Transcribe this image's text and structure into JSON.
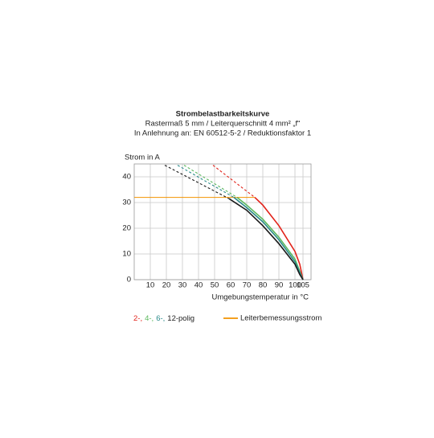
{
  "chart_data": {
    "type": "line",
    "title": "Strombelastbarkeitskurve",
    "subtitle": [
      "Rastermaß 5 mm / Leiterquerschnitt 4 mm² „f“",
      "In Anlehnung an: EN 60512-5-2 / Reduktionsfaktor 1"
    ],
    "y_label": "Strom in A",
    "x_label": "Umgebungstemperatur in °C",
    "xlim": [
      0,
      110
    ],
    "ylim": [
      0,
      45
    ],
    "xticks": [
      10,
      20,
      30,
      40,
      50,
      60,
      70,
      80,
      90,
      100,
      105
    ],
    "yticks": [
      0,
      10,
      20,
      30,
      40
    ],
    "grid": true,
    "series": [
      {
        "name": "2-,",
        "color": "#e2231a",
        "x": [
          75,
          80,
          90,
          100,
          103,
          105
        ],
        "values": [
          32,
          29,
          21,
          11,
          6,
          0
        ],
        "extension": {
          "x": [
            49,
            75
          ],
          "values": [
            44.5,
            32
          ]
        }
      },
      {
        "name": "4-,",
        "color": "#5bb85d",
        "x": [
          64,
          70,
          80,
          90,
          100,
          105
        ],
        "values": [
          32,
          29,
          23.5,
          16.5,
          8,
          0
        ],
        "extension": {
          "x": [
            31,
            64
          ],
          "values": [
            44.5,
            32
          ]
        }
      },
      {
        "name": "6-,",
        "color": "#2a8a8a",
        "x": [
          62,
          70,
          80,
          90,
          100,
          105
        ],
        "values": [
          32,
          28,
          22.5,
          15.5,
          7,
          0
        ],
        "extension": {
          "x": [
            27,
            62
          ],
          "values": [
            44.5,
            32
          ]
        }
      },
      {
        "name": "12-polig",
        "color": "#1a1a1a",
        "x": [
          59,
          70,
          80,
          90,
          100,
          103,
          105
        ],
        "values": [
          31.5,
          27,
          21,
          14,
          6,
          2,
          0
        ],
        "extension": {
          "x": [
            19,
            59
          ],
          "values": [
            44.5,
            31.5
          ]
        }
      }
    ],
    "reference_line": {
      "name": "Leiterbemessungsstrom",
      "color": "#f39200",
      "value": 32,
      "x": [
        0,
        75
      ]
    }
  }
}
